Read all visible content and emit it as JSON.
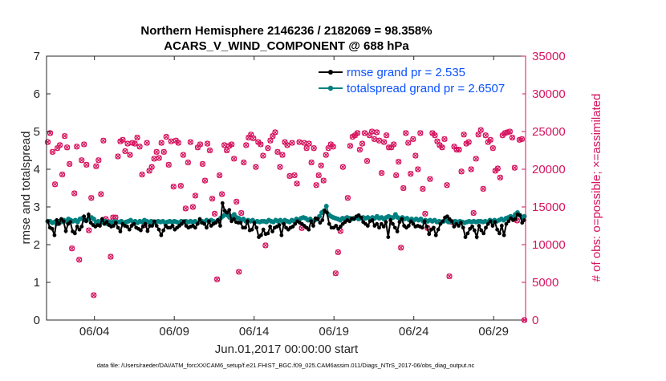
{
  "chart_data": {
    "type": "line",
    "title_line1": "Northern Hemisphere 2146236 / 2182069 = 98.358%",
    "title_line2": "ACARS_V_WIND_COMPONENT @ 688 hPa",
    "xlabel": "Jun.01,2017 00:00:00 start",
    "ylabel_left": "rmse and totalspread",
    "ylabel_right": "# of obs: o=possible; ×=assimilated",
    "footer": "data file: /Users/raeder/DAI/ATM_forcXX/CAM6_setup/f.e21.FHIST_BGC.f09_025.CAM6assim.011/Diags_NTrS_2017-06/obs_diag_output.nc",
    "xlim": [
      0.5,
      30.5
    ],
    "ylim_left": [
      0,
      7
    ],
    "ylim_right": [
      0,
      35000
    ],
    "x_ticks": [
      3.5,
      8.5,
      13.5,
      18.5,
      23.5,
      28.5
    ],
    "x_tick_labels": [
      "06/04",
      "06/09",
      "06/14",
      "06/19",
      "06/24",
      "06/29"
    ],
    "y_left_ticks": [
      "0",
      "1",
      "2",
      "3",
      "4",
      "5",
      "6",
      "7"
    ],
    "y_right_ticks": [
      "0",
      "5000",
      "10000",
      "15000",
      "20000",
      "25000",
      "30000",
      "35000"
    ],
    "colors": {
      "rmse": "#000000",
      "spread": "#008080",
      "obs": "#d6145f",
      "legend_text": "#0a50ff"
    },
    "series": [
      {
        "name": "rmse grand pr = 2.535",
        "values": [
          2.62,
          2.45,
          2.42,
          2.25,
          2.65,
          2.55,
          2.68,
          2.62,
          2.36,
          2.55,
          2.6,
          2.35,
          2.3,
          2.48,
          2.4,
          2.48,
          2.75,
          2.62,
          2.8,
          2.58,
          2.52,
          2.48,
          2.52,
          2.5,
          2.68,
          2.55,
          2.6,
          2.52,
          2.48,
          2.5,
          2.58,
          2.45,
          2.35,
          2.55,
          2.5,
          2.48,
          2.4,
          2.5,
          2.55,
          2.45,
          2.42,
          2.38,
          2.48,
          2.55,
          2.36,
          2.5,
          2.5,
          2.62,
          2.5,
          2.4,
          2.25,
          2.38,
          2.5,
          2.45,
          2.45,
          2.5,
          2.4,
          2.45,
          2.5,
          2.55,
          2.62,
          2.5,
          2.45,
          2.48,
          2.5,
          2.45,
          2.55,
          2.68,
          2.58,
          2.55,
          2.45,
          2.62,
          2.5,
          2.55,
          2.58,
          2.65,
          2.5,
          3.1,
          2.9,
          2.85,
          2.92,
          2.62,
          2.68,
          2.6,
          2.58,
          2.58,
          2.45,
          2.45,
          2.62,
          2.38,
          2.4,
          2.58,
          2.45,
          2.2,
          2.25,
          2.4,
          2.28,
          2.3,
          2.48,
          2.35,
          2.45,
          2.48,
          2.52,
          2.25,
          2.55,
          2.45,
          2.4,
          2.45,
          2.48,
          2.55,
          2.62,
          2.58,
          2.55,
          2.5,
          2.45,
          2.4,
          2.62,
          2.5,
          2.7,
          2.68,
          2.58,
          2.65,
          2.9,
          2.85,
          2.55,
          2.45,
          2.45,
          2.5,
          2.42,
          2.48,
          2.55,
          2.6,
          2.65,
          2.62,
          2.7,
          2.68,
          2.75,
          2.78,
          2.72,
          2.6,
          2.55,
          2.5,
          2.62,
          2.65,
          2.5,
          2.55,
          2.45,
          2.55,
          2.48,
          2.6,
          2.2,
          2.65,
          2.55,
          2.45,
          2.35,
          2.6,
          2.68,
          2.5,
          2.45,
          2.5,
          2.62,
          2.55,
          2.48,
          2.5,
          2.48,
          2.45,
          2.62,
          2.48,
          2.28,
          2.4,
          2.45,
          2.25,
          2.4,
          2.55,
          2.62,
          2.72,
          2.75,
          2.68,
          2.62,
          2.48,
          2.55,
          2.5,
          2.58,
          2.45,
          2.2,
          2.3,
          2.42,
          2.48,
          2.38,
          2.2,
          2.5,
          2.38,
          2.3,
          2.45,
          2.55,
          2.62,
          2.5,
          2.6,
          2.4,
          2.3,
          2.5,
          2.25,
          2.55,
          2.62,
          2.7,
          2.65,
          2.68,
          2.8,
          2.78,
          2.58,
          2.65
        ]
      },
      {
        "name": "totalspread grand pr = 2.6507",
        "values": [
          2.62,
          2.62,
          2.58,
          2.6,
          2.55,
          2.62,
          2.6,
          2.65,
          2.62,
          2.68,
          2.65,
          2.62,
          2.65,
          2.6,
          2.68,
          2.7,
          2.65,
          2.65,
          2.7,
          2.72,
          2.68,
          2.6,
          2.62,
          2.58,
          2.6,
          2.62,
          2.55,
          2.6,
          2.58,
          2.62,
          2.6,
          2.6,
          2.62,
          2.58,
          2.6,
          2.62,
          2.65,
          2.6,
          2.62,
          2.58,
          2.62,
          2.6,
          2.65,
          2.62,
          2.6,
          2.62,
          2.58,
          2.6,
          2.62,
          2.6,
          2.62,
          2.58,
          2.6,
          2.62,
          2.6,
          2.62,
          2.6,
          2.58,
          2.62,
          2.6,
          2.62,
          2.6,
          2.62,
          2.6,
          2.62,
          2.58,
          2.6,
          2.62,
          2.6,
          2.65,
          2.62,
          2.65,
          2.62,
          2.6,
          2.65,
          2.7,
          2.75,
          2.8,
          2.78,
          2.72,
          2.75,
          2.8,
          2.72,
          2.7,
          2.65,
          2.68,
          2.62,
          2.65,
          2.62,
          2.65,
          2.6,
          2.62,
          2.6,
          2.62,
          2.62,
          2.6,
          2.65,
          2.62,
          2.6,
          2.65,
          2.62,
          2.65,
          2.6,
          2.65,
          2.62,
          2.6,
          2.65,
          2.62,
          2.68,
          2.65,
          2.7,
          2.72,
          2.7,
          2.65,
          2.68,
          2.62,
          2.65,
          2.68,
          2.75,
          2.85,
          2.9,
          3.02,
          2.8,
          2.75,
          2.72,
          2.7,
          2.68,
          2.65,
          2.7,
          2.68,
          2.72,
          2.7,
          2.68,
          2.7,
          2.72,
          2.68,
          2.7,
          2.72,
          2.7,
          2.72,
          2.68,
          2.72,
          2.7,
          2.75,
          2.7,
          2.72,
          2.68,
          2.72,
          2.75,
          2.72,
          2.72,
          2.8,
          2.72,
          2.68,
          2.72,
          2.68,
          2.7,
          2.65,
          2.68,
          2.65,
          2.68,
          2.65,
          2.68,
          2.62,
          2.65,
          2.62,
          2.65,
          2.62,
          2.65,
          2.6,
          2.62,
          2.6,
          2.62,
          2.65,
          2.6,
          2.62,
          2.6,
          2.62,
          2.6,
          2.62,
          2.6,
          2.58,
          2.6,
          2.62,
          2.6,
          2.62,
          2.6,
          2.62,
          2.62,
          2.6,
          2.62,
          2.6,
          2.65,
          2.62,
          2.65,
          2.62,
          2.65,
          2.68,
          2.65,
          2.7,
          2.72,
          2.75,
          2.72,
          2.8,
          2.85,
          2.78,
          2.72,
          2.75
        ]
      }
    ],
    "obs_possible": [
      23600,
      24800,
      22300,
      18000,
      22800,
      23200,
      19300,
      24400,
      22900,
      20700,
      9500,
      16800,
      23000,
      8000,
      21200,
      23300,
      20600,
      11900,
      16200,
      3300,
      20400,
      21200,
      16700,
      23800,
      13400,
      13000,
      8400,
      13600,
      13600,
      21700,
      23700,
      23900,
      22400,
      23400,
      21900,
      23500,
      23400,
      24200,
      23000,
      19300,
      12600,
      23500,
      19800,
      20300,
      21400,
      22300,
      21500,
      23500,
      22300,
      24300,
      20600,
      23700,
      17700,
      23800,
      23500,
      17800,
      21900,
      14800,
      20900,
      23600,
      15000,
      16500,
      22900,
      23300,
      20700,
      18500,
      23400,
      22500,
      16100,
      14100,
      5400,
      19200,
      16700,
      23200,
      22500,
      23100,
      23300,
      21400,
      15700,
      6400,
      14200,
      20900,
      23200,
      24200,
      24600,
      24100,
      20300,
      23600,
      23300,
      21800,
      9900,
      22800,
      23800,
      24400,
      24900,
      22300,
      20300,
      21900,
      23600,
      23200,
      19100,
      23500,
      19200,
      18100,
      23600,
      12200,
      23500,
      22800,
      23400,
      20900,
      22800,
      17900,
      19200,
      20500,
      18500,
      21900,
      22800,
      23300,
      23000,
      6200,
      9000,
      11800,
      20300,
      13400,
      16200,
      23100,
      24300,
      24500,
      24800,
      22600,
      23400,
      24800,
      21100,
      24500,
      25000,
      24000,
      24900,
      23800,
      19500,
      23600,
      24500,
      22900,
      22900,
      23300,
      19200,
      21000,
      9600,
      17500,
      24800,
      23500,
      19400,
      24000,
      21800,
      20000,
      24800,
      17400,
      14100,
      12200,
      18700,
      24800,
      24500,
      23700,
      23200,
      22900,
      24000,
      17900,
      5800,
      13000,
      23000,
      22600,
      22600,
      19700,
      24600,
      23400,
      23600,
      20000,
      14200,
      21400,
      24600,
      25200,
      17400,
      24500,
      23600,
      23900,
      22800,
      19800,
      20100,
      18900,
      24500,
      24800,
      24900,
      25000,
      24200,
      20200,
      13200,
      23900,
      24000,
      0
    ]
  }
}
